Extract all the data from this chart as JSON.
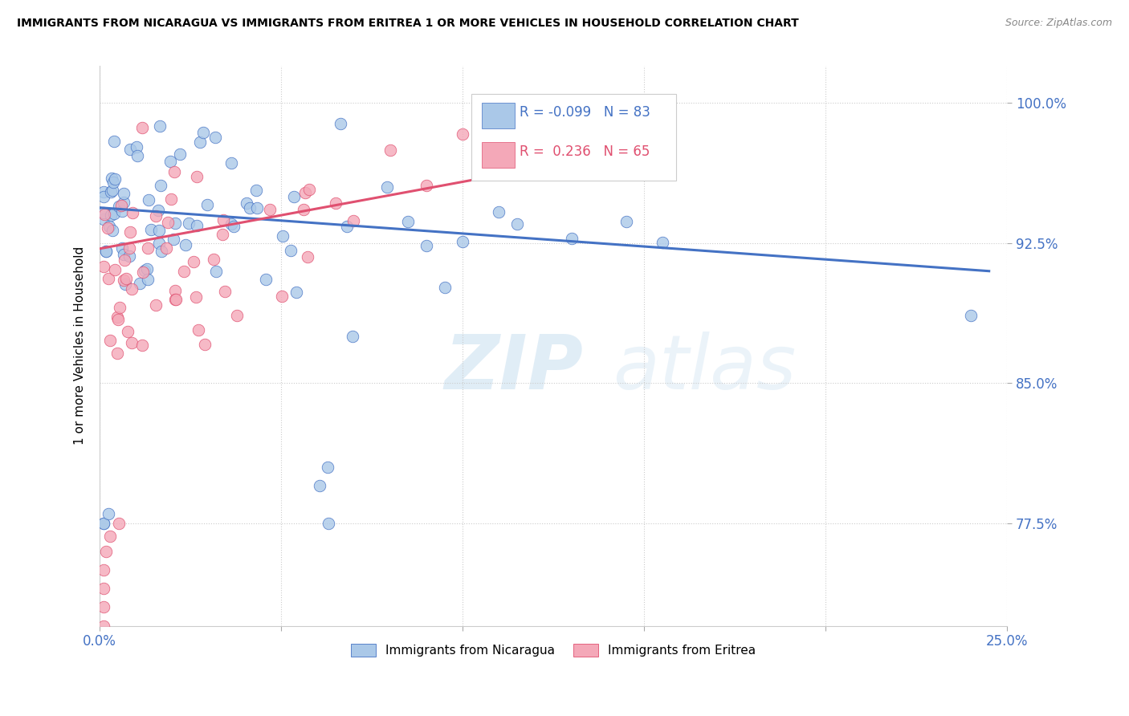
{
  "title": "IMMIGRANTS FROM NICARAGUA VS IMMIGRANTS FROM ERITREA 1 OR MORE VEHICLES IN HOUSEHOLD CORRELATION CHART",
  "source": "Source: ZipAtlas.com",
  "ylabel": "1 or more Vehicles in Household",
  "r_nicaragua": "-0.099",
  "n_nicaragua": "83",
  "r_eritrea": "0.236",
  "n_eritrea": "65",
  "color_nicaragua": "#aac8e8",
  "color_eritrea": "#f4a8b8",
  "line_color_nicaragua": "#4472c4",
  "line_color_eritrea": "#e05070",
  "watermark_zip": "ZIP",
  "watermark_atlas": "atlas",
  "legend_nicaragua": "Immigrants from Nicaragua",
  "legend_eritrea": "Immigrants from Eritrea",
  "ytick_values": [
    0.775,
    0.85,
    0.925,
    1.0
  ],
  "ytick_labels": [
    "77.5%",
    "85.0%",
    "92.5%",
    "100.0%"
  ],
  "xlim": [
    0.0,
    0.25
  ],
  "ylim": [
    0.72,
    1.02
  ]
}
